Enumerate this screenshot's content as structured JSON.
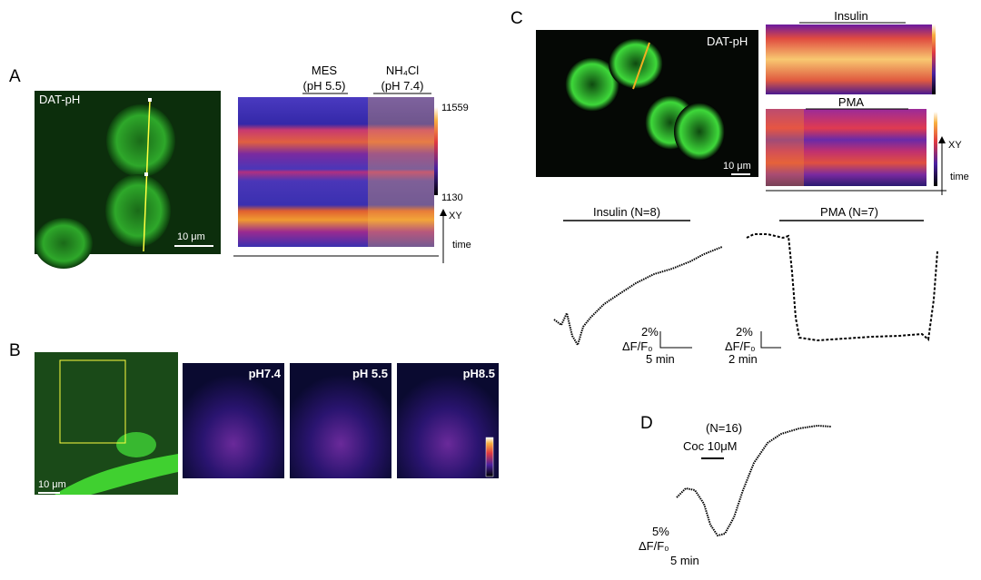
{
  "panels": {
    "A": {
      "label": "A",
      "image_label": "DAT-pH",
      "scale": "10 μm",
      "mes": "MES",
      "mes_ph": "(pH 5.5)",
      "nh4cl": "NH₄Cl",
      "nh4cl_ph": "(pH 7.4)",
      "cbar_max": "11559",
      "cbar_min": "1130",
      "axis_xy": "XY",
      "axis_time": "time"
    },
    "B": {
      "label": "B",
      "scale": "10 μm",
      "images": [
        "pH7.4",
        "pH 5.5",
        "pH8.5"
      ]
    },
    "C": {
      "label": "C",
      "image_label": "DAT-pH",
      "scale": "10 μm",
      "kymo_insulin": "Insulin",
      "kymo_pma": "PMA",
      "axis_xy": "XY",
      "axis_time": "time",
      "trace_insulin": {
        "title": "Insulin  (N=8)",
        "scale_y": "2%",
        "scale_unit": "ΔF/F₀",
        "scale_x": "5 min"
      },
      "trace_pma": {
        "title": "PMA   (N=7)",
        "scale_y": "2%",
        "scale_unit": "ΔF/F₀",
        "scale_x": "2 min"
      }
    },
    "D": {
      "label": "D",
      "n": "(N=16)",
      "drug": "Coc 10μM",
      "scale_y": "5%",
      "scale_unit": "ΔF/F₀",
      "scale_x": "5 min"
    }
  }
}
